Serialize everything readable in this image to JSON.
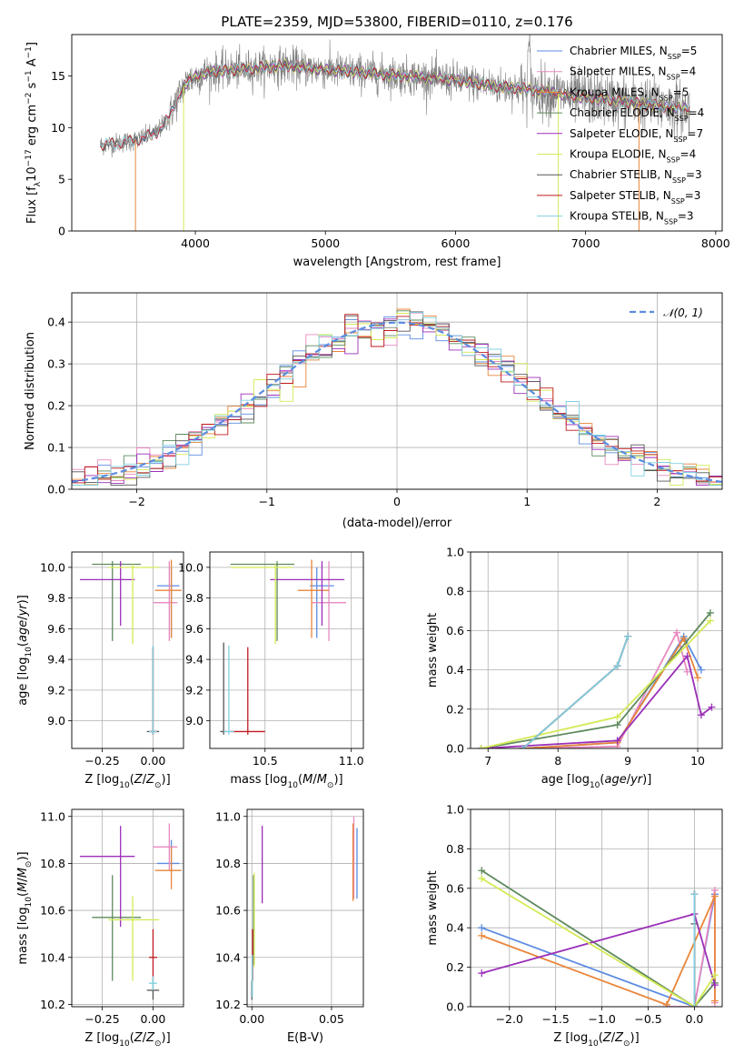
{
  "figure_title": "PLATE=2359, MJD=53800, FIBERID=0110, z=0.176",
  "colors": {
    "Chabrier MILES": "#5b8ce0",
    "Salpeter MILES": "#e889c0",
    "Kroupa MILES": "#e8853a",
    "Chabrier ELODIE": "#5e8a5e",
    "Salpeter ELODIE": "#9b2fb8",
    "Kroupa ELODIE": "#d4ea55",
    "Chabrier STELIB": "#555555",
    "Salpeter STELIB": "#c0191e",
    "Kroupa STELIB": "#7fd0e0",
    "data": "#808080",
    "normal": "#5b8ce0"
  },
  "chart_data": [
    {
      "id": "spectrum",
      "type": "line",
      "xlabel": "wavelength [Angstrom, rest frame]",
      "ylabel": "Flux [f_λ10^-17 erg cm^-2 s^-1 A^-1]",
      "xlim": [
        3050,
        8050
      ],
      "ylim": [
        0,
        19
      ],
      "xticks": [
        4000,
        5000,
        6000,
        7000,
        8000
      ],
      "yticks": [
        0,
        5,
        10,
        15
      ],
      "grid": false,
      "legend_position": "top-right",
      "legend": [
        {
          "model": "Chabrier MILES",
          "nssp": "5"
        },
        {
          "model": "Salpeter MILES",
          "nssp": "4"
        },
        {
          "model": "Kroupa MILES",
          "nssp": "5"
        },
        {
          "model": "Chabrier ELODIE",
          "nssp": "4"
        },
        {
          "model": "Salpeter ELODIE",
          "nssp": "7"
        },
        {
          "model": "Kroupa ELODIE",
          "nssp": "4"
        },
        {
          "model": "Chabrier STELIB",
          "nssp": "3"
        },
        {
          "model": "Salpeter STELIB",
          "nssp": "3"
        },
        {
          "model": "Kroupa STELIB",
          "nssp": "3"
        }
      ],
      "continuum": {
        "x": [
          3270,
          3400,
          3550,
          3700,
          3800,
          3850,
          3900,
          3950,
          4050,
          4200,
          4350,
          4500,
          4700,
          4900,
          5100,
          5300,
          5600,
          5900,
          6100,
          6300,
          6500,
          6700,
          6900,
          7100,
          7300,
          7500,
          7800
        ],
        "y": [
          8.3,
          8.5,
          8.8,
          9.5,
          11.0,
          12.5,
          13.8,
          14.6,
          15.2,
          15.5,
          15.6,
          15.8,
          16.0,
          15.7,
          15.5,
          15.3,
          15.0,
          14.7,
          14.4,
          14.0,
          13.8,
          13.5,
          13.0,
          12.8,
          12.5,
          12.2,
          11.8
        ]
      }
    },
    {
      "id": "residuals",
      "type": "line",
      "xlabel": "(data-model)/error",
      "ylabel": "Normed distribution",
      "xlim": [
        -2.5,
        2.5
      ],
      "ylim": [
        0,
        0.47
      ],
      "xticks": [
        -2,
        -1,
        0,
        1,
        2
      ],
      "yticks": [
        0.0,
        0.1,
        0.2,
        0.3,
        0.4
      ],
      "grid": true,
      "legend_position": "top-right",
      "series": [
        {
          "name": "N(0,1)",
          "label_text": "𝒩(0, 1)",
          "sigma": 1.0
        }
      ],
      "histograms": {
        "bins": [
          -2.5,
          2.5,
          50
        ],
        "note_values": "per-model normalized histograms of residuals, approximately standard normal with noise"
      }
    },
    {
      "id": "z-age",
      "type": "scatter",
      "xlabel": "Z [log10(Z/Z⊙)]",
      "ylabel": "age  [log10(age/yr)]",
      "xlim": [
        -0.4,
        0.15
      ],
      "ylim": [
        8.82,
        10.1
      ],
      "xticks": [
        -0.25,
        0.0
      ],
      "yticks": [
        9.0,
        9.2,
        9.4,
        9.6,
        9.8,
        10.0
      ],
      "grid": true,
      "points": [
        {
          "model": "Chabrier MILES",
          "x": 0.09,
          "y": 9.88,
          "xerr": [
            0.07,
            0.04
          ],
          "yerr": [
            0.34,
            0.12
          ]
        },
        {
          "model": "Salpeter MILES",
          "x": 0.08,
          "y": 9.77,
          "xerr": [
            0.08,
            0.04
          ],
          "yerr": [
            0.25,
            0.27
          ]
        },
        {
          "model": "Kroupa MILES",
          "x": 0.09,
          "y": 9.85,
          "xerr": [
            0.08,
            0.05
          ],
          "yerr": [
            0.31,
            0.2
          ]
        },
        {
          "model": "Chabrier ELODIE",
          "x": -0.2,
          "y": 10.02,
          "xerr": [
            0.1,
            0.14
          ],
          "yerr": [
            0.5,
            0.02
          ]
        },
        {
          "model": "Salpeter ELODIE",
          "x": -0.16,
          "y": 9.92,
          "xerr": [
            0.2,
            0.07
          ],
          "yerr": [
            0.3,
            0.12
          ]
        },
        {
          "model": "Kroupa ELODIE",
          "x": -0.1,
          "y": 10.0,
          "xerr": [
            0.12,
            0.13
          ],
          "yerr": [
            0.5,
            0.02
          ]
        },
        {
          "model": "Chabrier STELIB",
          "x": 0.0,
          "y": 8.93,
          "xerr": [
            0.03,
            0.03
          ],
          "yerr": [
            0.02,
            0.55
          ]
        },
        {
          "model": "Salpeter STELIB",
          "x": 0.0,
          "y": 8.93,
          "xerr": [
            0.02,
            0.02
          ],
          "yerr": [
            0.02,
            0.55
          ]
        },
        {
          "model": "Kroupa STELIB",
          "x": 0.0,
          "y": 8.93,
          "xerr": [
            0.02,
            0.02
          ],
          "yerr": [
            0.02,
            0.56
          ]
        }
      ]
    },
    {
      "id": "mass-age",
      "type": "scatter",
      "xlabel": "mass [log10(M/M⊙)]",
      "ylabel": "",
      "xlim": [
        10.18,
        11.07
      ],
      "ylim": [
        8.82,
        10.1
      ],
      "xticks": [
        10.5,
        11.0
      ],
      "yticks": [
        9.0,
        9.2,
        9.4,
        9.6,
        9.8,
        10.0
      ],
      "grid": true,
      "points": [
        {
          "model": "Chabrier MILES",
          "x": 10.8,
          "y": 9.88,
          "xerr": [
            0.04,
            0.1
          ],
          "yerr": [
            0.34,
            0.12
          ]
        },
        {
          "model": "Salpeter MILES",
          "x": 10.87,
          "y": 9.77,
          "xerr": [
            0.1,
            0.1
          ],
          "yerr": [
            0.25,
            0.27
          ]
        },
        {
          "model": "Kroupa MILES",
          "x": 10.77,
          "y": 9.85,
          "xerr": [
            0.08,
            0.1
          ],
          "yerr": [
            0.31,
            0.2
          ]
        },
        {
          "model": "Chabrier ELODIE",
          "x": 10.57,
          "y": 10.02,
          "xerr": [
            0.27,
            0.1
          ],
          "yerr": [
            0.5,
            0.02
          ]
        },
        {
          "model": "Salpeter ELODIE",
          "x": 10.83,
          "y": 9.92,
          "xerr": [
            0.3,
            0.13
          ],
          "yerr": [
            0.3,
            0.12
          ]
        },
        {
          "model": "Kroupa ELODIE",
          "x": 10.56,
          "y": 10.0,
          "xerr": [
            0.26,
            0.1
          ],
          "yerr": [
            0.5,
            0.02
          ]
        },
        {
          "model": "Chabrier STELIB",
          "x": 10.26,
          "y": 8.93,
          "xerr": [
            0.02,
            0.02
          ],
          "yerr": [
            0.02,
            0.58
          ]
        },
        {
          "model": "Salpeter STELIB",
          "x": 10.4,
          "y": 8.93,
          "xerr": [
            0.1,
            0.1
          ],
          "yerr": [
            0.02,
            0.55
          ]
        },
        {
          "model": "Kroupa STELIB",
          "x": 10.29,
          "y": 8.93,
          "xerr": [
            0.03,
            0.03
          ],
          "yerr": [
            0.02,
            0.56
          ]
        }
      ]
    },
    {
      "id": "age-weight",
      "type": "line",
      "xlabel": "age  [log10(age/yr)]",
      "ylabel": "mass weight",
      "xlim": [
        6.75,
        10.35
      ],
      "ylim": [
        0,
        1.0
      ],
      "xticks": [
        7,
        8,
        9,
        10
      ],
      "yticks": [
        0.0,
        0.2,
        0.4,
        0.6,
        0.8,
        1.0
      ],
      "grid": true,
      "series": [
        {
          "model": "Chabrier MILES",
          "x": [
            7.5,
            8.85,
            9.8,
            10.05
          ],
          "y": [
            0.0,
            0.03,
            0.57,
            0.4
          ]
        },
        {
          "model": "Salpeter MILES",
          "x": [
            7.5,
            8.85,
            9.7,
            9.85
          ],
          "y": [
            0.0,
            0.01,
            0.59,
            0.39
          ]
        },
        {
          "model": "Kroupa MILES",
          "x": [
            7.5,
            8.85,
            9.8,
            10.0
          ],
          "y": [
            0.0,
            0.03,
            0.56,
            0.36
          ]
        },
        {
          "model": "Chabrier ELODIE",
          "x": [
            6.9,
            8.85,
            10.18
          ],
          "y": [
            0.0,
            0.12,
            0.69
          ]
        },
        {
          "model": "Salpeter ELODIE",
          "x": [
            6.9,
            8.85,
            9.85,
            10.05,
            10.2
          ],
          "y": [
            0.0,
            0.04,
            0.47,
            0.17,
            0.21
          ]
        },
        {
          "model": "Kroupa ELODIE",
          "x": [
            6.9,
            8.85,
            10.18
          ],
          "y": [
            0.0,
            0.16,
            0.65
          ]
        },
        {
          "model": "Chabrier STELIB",
          "x": [
            7.5,
            8.85,
            9.0
          ],
          "y": [
            0.0,
            0.42,
            0.57
          ]
        },
        {
          "model": "Salpeter STELIB",
          "x": [
            7.5,
            8.85,
            9.0
          ],
          "y": [
            0.0,
            0.42,
            0.57
          ]
        },
        {
          "model": "Kroupa STELIB",
          "x": [
            7.5,
            8.85,
            9.0
          ],
          "y": [
            0.0,
            0.42,
            0.57
          ]
        }
      ]
    },
    {
      "id": "z-mass",
      "type": "scatter",
      "xlabel": "Z [log10(Z/Z⊙)]",
      "ylabel": "mass [log10(M/M⊙)]",
      "xlim": [
        -0.4,
        0.15
      ],
      "ylim": [
        10.19,
        11.03
      ],
      "xticks": [
        -0.25,
        0.0
      ],
      "yticks": [
        10.2,
        10.4,
        10.6,
        10.8,
        11.0
      ],
      "grid": true,
      "points": [
        {
          "model": "Chabrier MILES",
          "x": 0.09,
          "y": 10.8,
          "xerr": [
            0.07,
            0.04
          ],
          "yerr": [
            0.04,
            0.1
          ]
        },
        {
          "model": "Salpeter MILES",
          "x": 0.08,
          "y": 10.87,
          "xerr": [
            0.08,
            0.04
          ],
          "yerr": [
            0.1,
            0.1
          ]
        },
        {
          "model": "Kroupa MILES",
          "x": 0.09,
          "y": 10.77,
          "xerr": [
            0.08,
            0.05
          ],
          "yerr": [
            0.08,
            0.1
          ]
        },
        {
          "model": "Chabrier ELODIE",
          "x": -0.2,
          "y": 10.57,
          "xerr": [
            0.1,
            0.14
          ],
          "yerr": [
            0.27,
            0.18
          ]
        },
        {
          "model": "Salpeter ELODIE",
          "x": -0.16,
          "y": 10.83,
          "xerr": [
            0.2,
            0.07
          ],
          "yerr": [
            0.3,
            0.13
          ]
        },
        {
          "model": "Kroupa ELODIE",
          "x": -0.1,
          "y": 10.56,
          "xerr": [
            0.12,
            0.13
          ],
          "yerr": [
            0.26,
            0.1
          ]
        },
        {
          "model": "Chabrier STELIB",
          "x": 0.0,
          "y": 10.26,
          "xerr": [
            0.03,
            0.03
          ],
          "yerr": [
            0.04,
            0.04
          ]
        },
        {
          "model": "Salpeter STELIB",
          "x": 0.0,
          "y": 10.4,
          "xerr": [
            0.02,
            0.02
          ],
          "yerr": [
            0.1,
            0.12
          ]
        },
        {
          "model": "Kroupa STELIB",
          "x": 0.0,
          "y": 10.29,
          "xerr": [
            0.02,
            0.02
          ],
          "yerr": [
            0.03,
            0.03
          ]
        }
      ]
    },
    {
      "id": "ebv-mass",
      "type": "scatter",
      "xlabel": "E(B-V)",
      "ylabel": "",
      "xlim": [
        -0.003,
        0.07
      ],
      "ylim": [
        10.19,
        11.03
      ],
      "xticks": [
        0.0,
        0.05
      ],
      "yticks": [
        10.2,
        10.4,
        10.6,
        10.8,
        11.0
      ],
      "grid": true,
      "points": [
        {
          "model": "Chabrier MILES",
          "x": 0.066,
          "y": 10.8,
          "yerr": [
            0.15,
            0.15
          ]
        },
        {
          "model": "Salpeter MILES",
          "x": 0.064,
          "y": 10.87,
          "yerr": [
            0.22,
            0.13
          ]
        },
        {
          "model": "Kroupa MILES",
          "x": 0.0635,
          "y": 10.77,
          "yerr": [
            0.13,
            0.2
          ]
        },
        {
          "model": "Chabrier ELODIE",
          "x": 0.001,
          "y": 10.57,
          "yerr": [
            0.2,
            0.18
          ]
        },
        {
          "model": "Salpeter ELODIE",
          "x": 0.0065,
          "y": 10.83,
          "yerr": [
            0.2,
            0.13
          ]
        },
        {
          "model": "Kroupa ELODIE",
          "x": 0.0015,
          "y": 10.56,
          "yerr": [
            0.2,
            0.2
          ]
        },
        {
          "model": "Chabrier STELIB",
          "x": 0.0,
          "y": 10.26,
          "yerr": [
            0.04,
            0.04
          ]
        },
        {
          "model": "Salpeter STELIB",
          "x": 0.0005,
          "y": 10.4,
          "yerr": [
            0.1,
            0.12
          ]
        },
        {
          "model": "Kroupa STELIB",
          "x": 0.0003,
          "y": 10.29,
          "yerr": [
            0.06,
            0.12
          ]
        }
      ]
    },
    {
      "id": "z-weight",
      "type": "line",
      "xlabel": "Z [log10(Z/Z⊙)]",
      "ylabel": "mass weight",
      "xlim": [
        -2.42,
        0.3
      ],
      "ylim": [
        0,
        1.0
      ],
      "xticks": [
        -2.0,
        -1.5,
        -1.0,
        -0.5,
        0.0
      ],
      "yticks": [
        0.0,
        0.2,
        0.4,
        0.6,
        0.8,
        1.0
      ],
      "grid": true,
      "series": [
        {
          "model": "Chabrier MILES",
          "x": [
            -2.3,
            0.0,
            0.22
          ],
          "y": [
            0.4,
            0.0,
            0.57
          ]
        },
        {
          "model": "Salpeter MILES",
          "x": [
            -0.3,
            0.0,
            0.22,
            0.22
          ],
          "y": [
            0.0,
            0.0,
            0.59,
            0.02
          ]
        },
        {
          "model": "Kroupa MILES",
          "x": [
            -2.3,
            -0.3,
            0.22,
            0.22
          ],
          "y": [
            0.36,
            0.01,
            0.56,
            0.03
          ]
        },
        {
          "model": "Chabrier ELODIE",
          "x": [
            -2.3,
            0.0,
            0.22
          ],
          "y": [
            0.69,
            0.0,
            0.12
          ]
        },
        {
          "model": "Salpeter ELODIE",
          "x": [
            -2.3,
            0.0,
            0.22
          ],
          "y": [
            0.17,
            0.47,
            0.11
          ]
        },
        {
          "model": "Kroupa ELODIE",
          "x": [
            -2.3,
            0.0,
            0.22
          ],
          "y": [
            0.65,
            0.0,
            0.16
          ]
        },
        {
          "model": "Chabrier STELIB",
          "x": [
            0.0,
            0.0,
            0.0
          ],
          "y": [
            0.0,
            0.42,
            0.57
          ]
        },
        {
          "model": "Salpeter STELIB",
          "x": [
            0.0,
            0.0
          ],
          "y": [
            0.0,
            0.57
          ]
        },
        {
          "model": "Kroupa STELIB",
          "x": [
            0.0,
            0.0
          ],
          "y": [
            0.0,
            0.57
          ]
        }
      ]
    }
  ]
}
